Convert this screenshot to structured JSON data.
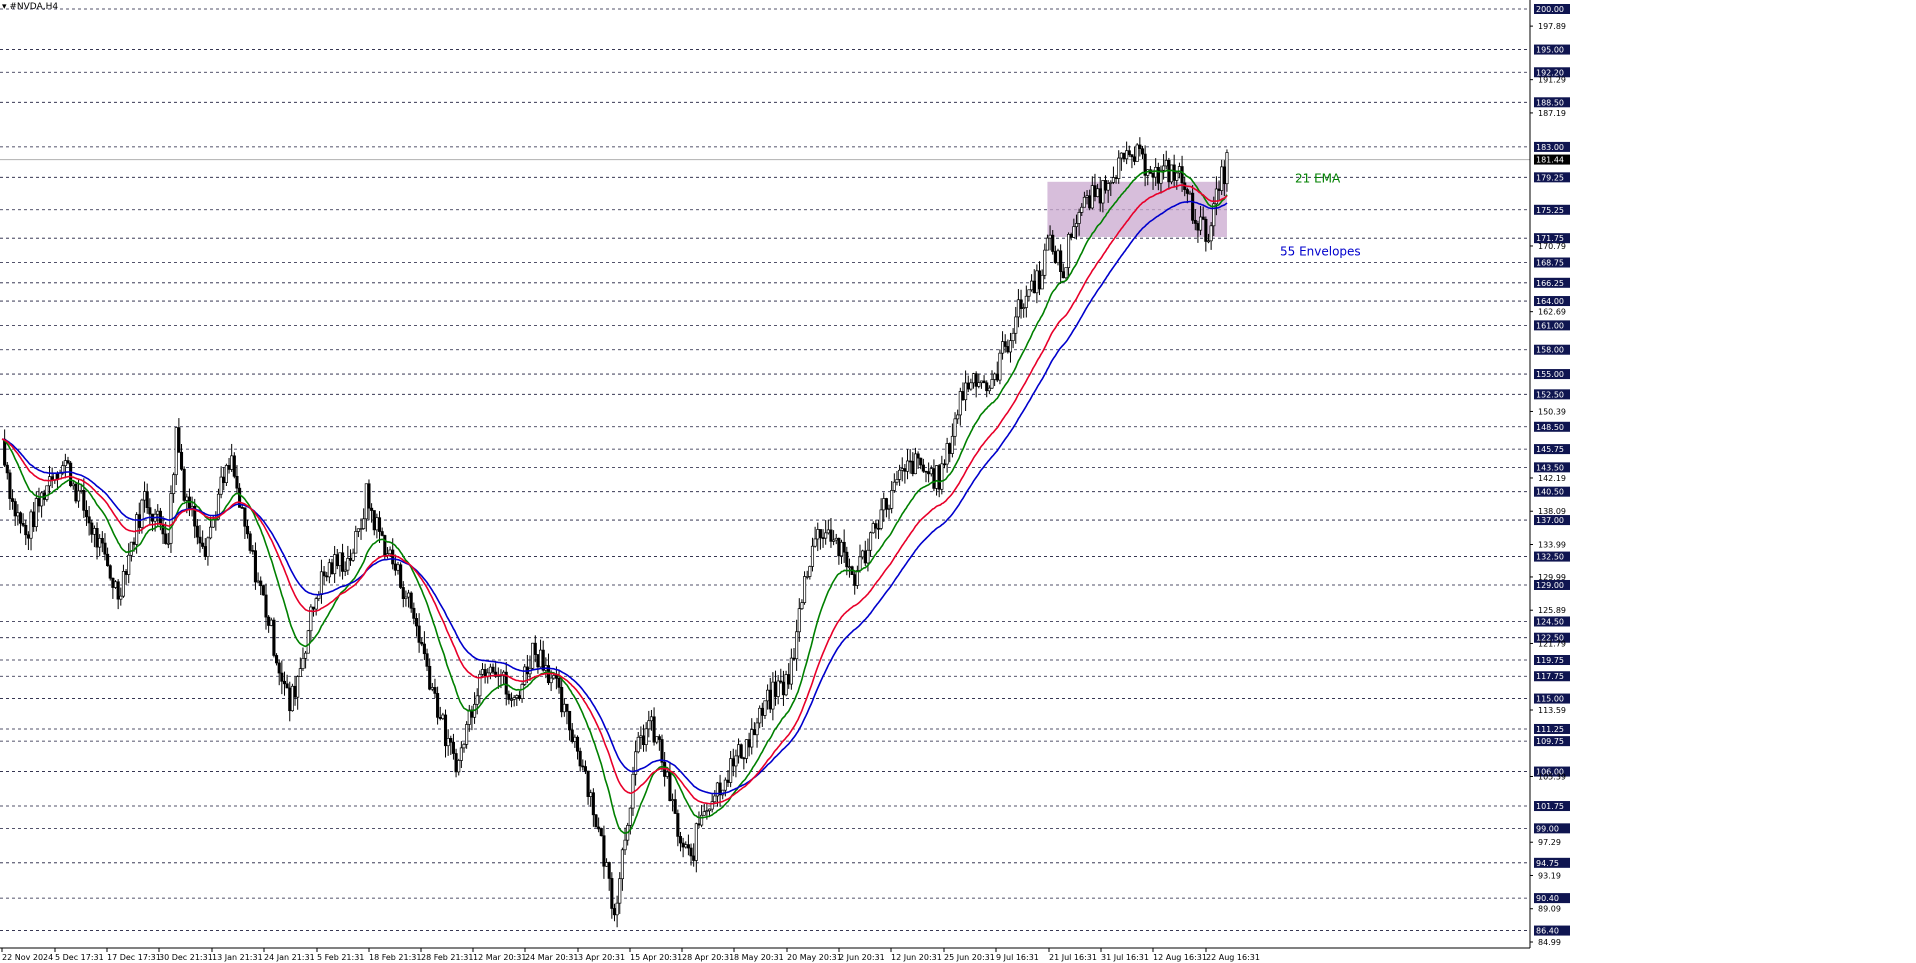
{
  "window": {
    "symbol_label": "▾ #NVDA,H4"
  },
  "chart_data": {
    "type": "candlestick",
    "symbol": "#NVDA",
    "timeframe": "H4",
    "price_axis": {
      "min": 84.99,
      "max": 200.0
    },
    "level_lines": [
      200.0,
      195.0,
      192.2,
      188.5,
      183.0,
      179.25,
      175.25,
      171.75,
      168.75,
      166.25,
      164.0,
      161.0,
      158.0,
      155.0,
      152.5,
      148.5,
      145.75,
      143.5,
      140.5,
      137.0,
      132.5,
      129.0,
      124.5,
      122.5,
      119.75,
      117.75,
      115.0,
      111.25,
      109.75,
      106.0,
      101.75,
      99.0,
      94.75,
      90.4,
      86.4
    ],
    "minor_tick_labels": [
      197.89,
      191.29,
      187.19,
      170.79,
      162.69,
      150.39,
      142.19,
      138.09,
      133.99,
      129.99,
      125.89,
      121.79,
      113.59,
      105.39,
      97.29,
      93.19,
      89.09,
      84.99
    ],
    "current_price": 181.44,
    "x_tick_labels": [
      "22 Nov 2024",
      "5 Dec 17:31",
      "17 Dec 17:31",
      "30 Dec 21:31",
      "13 Jan 21:31",
      "24 Jan 21:31",
      "5 Feb 21:31",
      "18 Feb 21:31",
      "28 Feb 21:31",
      "12 Mar 20:31",
      "24 Mar 20:31",
      "3 Apr 20:31",
      "15 Apr 20:31",
      "28 Apr 20:31",
      "8 May 20:31",
      "20 May 20:31",
      "2 Jun 20:31",
      "12 Jun 20:31",
      "25 Jun 20:31",
      "9 Jul 16:31",
      "21 Jul 16:31",
      "31 Jul 16:31",
      "12 Aug 16:31",
      "22 Aug 16:31"
    ],
    "price_path": [
      [
        0,
        147
      ],
      [
        8,
        139
      ],
      [
        18,
        135
      ],
      [
        28,
        139
      ],
      [
        38,
        143
      ],
      [
        48,
        144
      ],
      [
        58,
        140
      ],
      [
        68,
        136
      ],
      [
        78,
        132
      ],
      [
        88,
        128
      ],
      [
        98,
        134
      ],
      [
        108,
        140
      ],
      [
        118,
        137
      ],
      [
        126,
        135
      ],
      [
        132,
        148
      ],
      [
        138,
        141
      ],
      [
        146,
        137
      ],
      [
        154,
        134
      ],
      [
        160,
        137
      ],
      [
        166,
        141
      ],
      [
        174,
        144
      ],
      [
        182,
        137
      ],
      [
        190,
        132
      ],
      [
        200,
        126
      ],
      [
        210,
        119
      ],
      [
        218,
        114
      ],
      [
        226,
        119
      ],
      [
        234,
        125
      ],
      [
        240,
        129
      ],
      [
        248,
        131
      ],
      [
        256,
        132
      ],
      [
        262,
        132
      ],
      [
        270,
        135
      ],
      [
        276,
        140
      ],
      [
        282,
        137
      ],
      [
        290,
        134
      ],
      [
        298,
        131
      ],
      [
        306,
        128
      ],
      [
        314,
        124
      ],
      [
        322,
        119
      ],
      [
        330,
        114
      ],
      [
        338,
        109
      ],
      [
        346,
        107
      ],
      [
        354,
        113
      ],
      [
        362,
        118
      ],
      [
        370,
        120
      ],
      [
        378,
        118
      ],
      [
        386,
        114
      ],
      [
        394,
        117
      ],
      [
        402,
        121
      ],
      [
        410,
        120
      ],
      [
        418,
        117
      ],
      [
        426,
        113
      ],
      [
        434,
        110
      ],
      [
        442,
        106
      ],
      [
        450,
        100
      ],
      [
        458,
        94
      ],
      [
        464,
        89
      ],
      [
        470,
        96
      ],
      [
        476,
        103
      ],
      [
        482,
        109
      ],
      [
        490,
        112
      ],
      [
        498,
        109
      ],
      [
        506,
        103
      ],
      [
        514,
        97
      ],
      [
        522,
        95
      ],
      [
        530,
        101
      ],
      [
        538,
        103
      ],
      [
        546,
        105
      ],
      [
        554,
        107
      ],
      [
        562,
        109
      ],
      [
        570,
        111
      ],
      [
        578,
        114
      ],
      [
        586,
        116
      ],
      [
        594,
        117
      ],
      [
        600,
        120
      ],
      [
        606,
        128
      ],
      [
        614,
        134
      ],
      [
        622,
        136
      ],
      [
        630,
        135
      ],
      [
        638,
        132
      ],
      [
        646,
        130
      ],
      [
        654,
        133
      ],
      [
        662,
        137
      ],
      [
        670,
        139
      ],
      [
        680,
        142
      ],
      [
        690,
        144
      ],
      [
        700,
        143
      ],
      [
        710,
        142
      ],
      [
        716,
        145
      ],
      [
        720,
        148
      ],
      [
        726,
        152
      ],
      [
        732,
        154
      ],
      [
        738,
        155
      ],
      [
        744,
        154
      ],
      [
        750,
        153
      ],
      [
        756,
        157
      ],
      [
        762,
        159
      ],
      [
        768,
        162
      ],
      [
        774,
        164
      ],
      [
        780,
        166
      ],
      [
        786,
        167
      ],
      [
        792,
        171
      ],
      [
        798,
        170
      ],
      [
        804,
        167
      ],
      [
        810,
        173
      ],
      [
        816,
        175
      ],
      [
        822,
        176
      ],
      [
        828,
        177
      ],
      [
        834,
        178
      ],
      [
        840,
        180
      ],
      [
        846,
        181
      ],
      [
        852,
        181
      ],
      [
        858,
        182
      ],
      [
        864,
        181
      ],
      [
        870,
        181
      ],
      [
        876,
        179
      ],
      [
        882,
        180
      ],
      [
        888,
        180
      ],
      [
        894,
        179
      ],
      [
        900,
        176
      ],
      [
        906,
        174
      ],
      [
        912,
        172
      ],
      [
        918,
        175
      ],
      [
        924,
        179
      ],
      [
        928,
        181
      ]
    ],
    "overlay_box": {
      "from_index": 792,
      "to_index": 928,
      "low": 171.9,
      "high": 178.7
    },
    "series": [
      {
        "name": "21 EMA",
        "color": "#008000",
        "period": 21
      },
      {
        "name": "55 Envelopes",
        "color": "#0000cc",
        "period": 55
      },
      {
        "name": "",
        "color": "#e8002a",
        "period": 40
      }
    ],
    "annotations": [
      "21 EMA",
      "55 Envelopes"
    ]
  }
}
